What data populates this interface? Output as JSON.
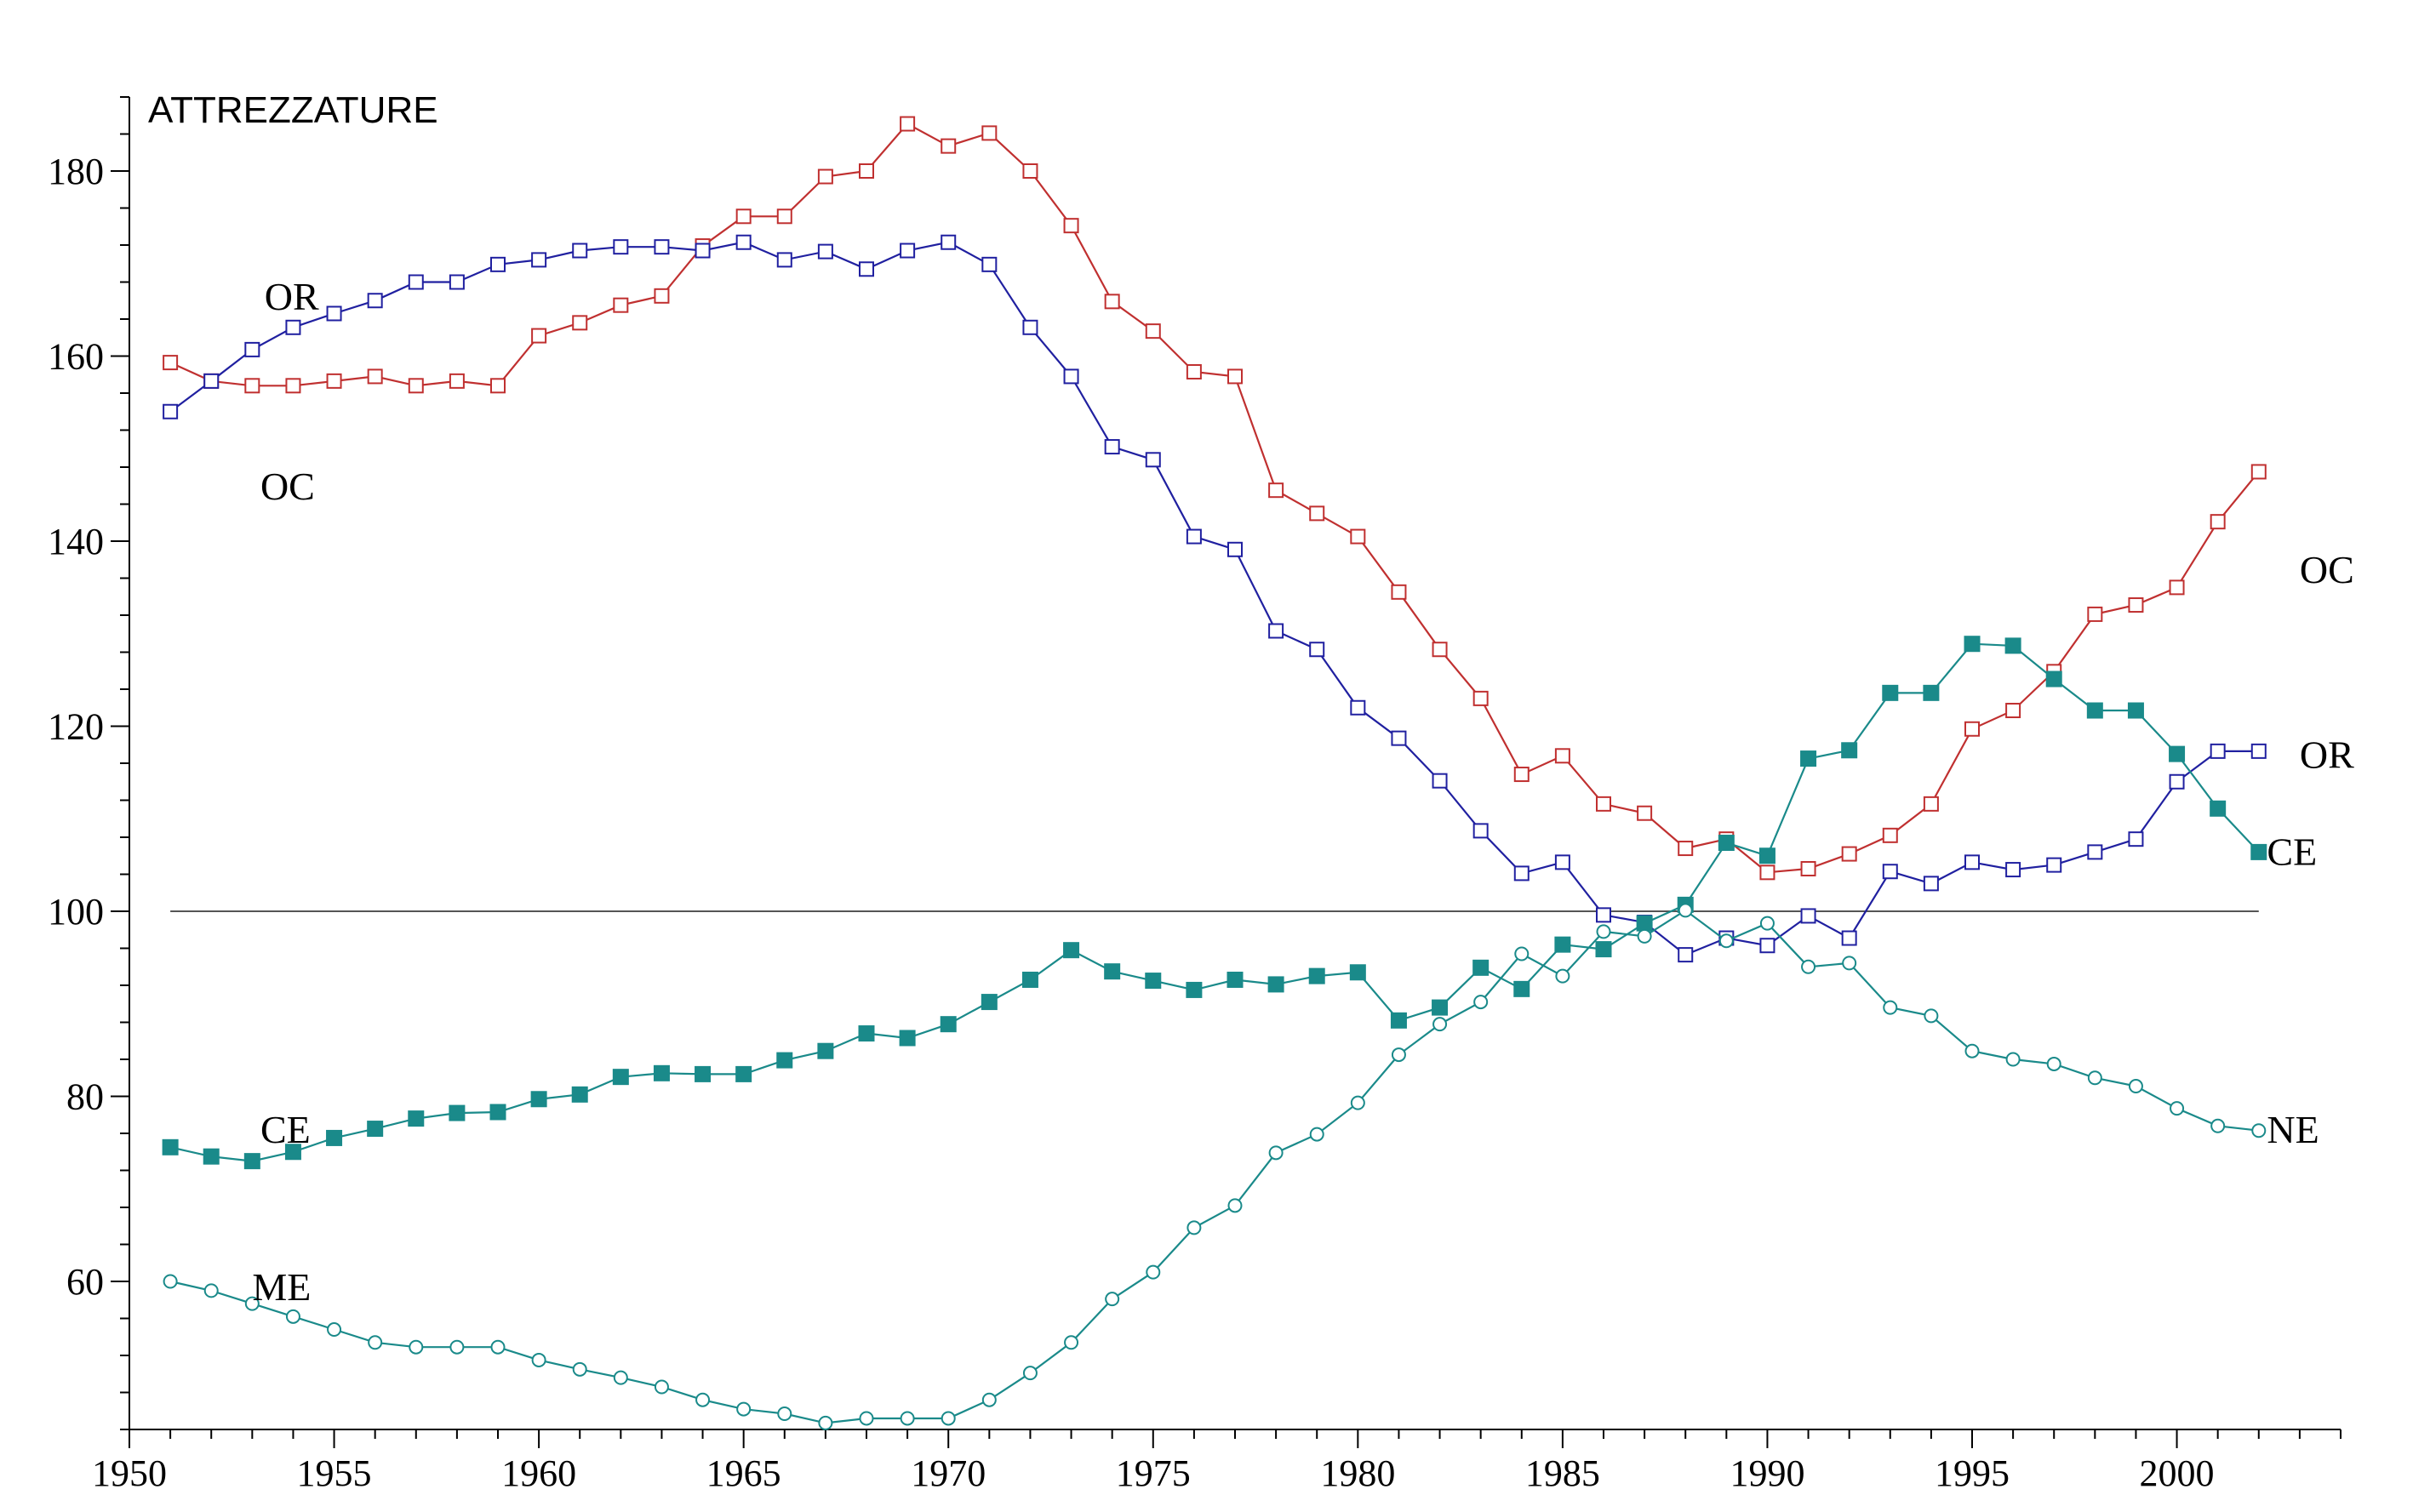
{
  "chart_data": {
    "type": "line",
    "title": "ATTREZZATURE",
    "xlabel": "",
    "ylabel": "",
    "xlim": [
      1950,
      2004
    ],
    "ylim": [
      44,
      188
    ],
    "grid": false,
    "reference_line": 100,
    "x_ticks": [
      1950,
      1955,
      1960,
      1965,
      1970,
      1975,
      1980,
      1985,
      1990,
      1995,
      2000
    ],
    "y_ticks": [
      60,
      80,
      100,
      120,
      140,
      160,
      180
    ],
    "x": [
      1951,
      1952,
      1953,
      1954,
      1955,
      1956,
      1957,
      1958,
      1959,
      1960,
      1961,
      1962,
      1963,
      1964,
      1965,
      1966,
      1967,
      1968,
      1969,
      1970,
      1971,
      1972,
      1973,
      1974,
      1975,
      1976,
      1977,
      1978,
      1979,
      1980,
      1981,
      1982,
      1983,
      1984,
      1985,
      1986,
      1987,
      1988,
      1989,
      1990,
      1991,
      1992,
      1993,
      1994,
      1995,
      1996,
      1997,
      1998,
      1999,
      2000,
      2001,
      2002
    ],
    "series": [
      {
        "id": "oc",
        "color": "#c03030",
        "marker": "open-square",
        "values": [
          159.3,
          157.3,
          156.8,
          156.8,
          157.3,
          157.8,
          156.8,
          157.3,
          156.8,
          162.2,
          163.6,
          165.5,
          166.5,
          171.9,
          175.1,
          175.1,
          179.4,
          180.0,
          185.1,
          182.7,
          184.1,
          180.0,
          174.1,
          165.9,
          162.7,
          158.3,
          157.8,
          145.5,
          143.0,
          140.5,
          134.5,
          128.3,
          123.0,
          114.8,
          116.8,
          111.6,
          110.6,
          106.8,
          107.8,
          104.2,
          104.6,
          106.2,
          108.2,
          111.6,
          119.7,
          121.7,
          125.9,
          132.1,
          133.1,
          135.0,
          142.1,
          147.5
        ]
      },
      {
        "id": "or",
        "color": "#2020a0",
        "marker": "open-square",
        "values": [
          154.0,
          157.3,
          160.7,
          163.1,
          164.6,
          166.0,
          168.0,
          168.0,
          169.9,
          170.4,
          171.4,
          171.8,
          171.8,
          171.4,
          172.3,
          170.4,
          171.3,
          169.4,
          171.4,
          172.3,
          169.9,
          163.1,
          157.8,
          150.2,
          148.8,
          140.5,
          139.1,
          130.3,
          128.3,
          122.0,
          118.7,
          114.1,
          108.7,
          104.1,
          105.3,
          99.6,
          98.8,
          95.3,
          97.1,
          96.3,
          99.5,
          97.1,
          104.3,
          103.0,
          105.3,
          104.5,
          105.0,
          106.4,
          107.8,
          114.0,
          117.3,
          117.3
        ]
      },
      {
        "id": "ce",
        "color": "#1a8a8a",
        "marker": "filled-square",
        "values": [
          74.5,
          73.5,
          73.0,
          74.0,
          75.5,
          76.5,
          77.6,
          78.2,
          78.3,
          79.7,
          80.2,
          82.1,
          82.5,
          82.4,
          82.4,
          83.9,
          84.9,
          86.8,
          86.3,
          87.8,
          90.2,
          92.6,
          95.8,
          93.5,
          92.5,
          91.5,
          92.6,
          92.1,
          93.0,
          93.4,
          88.2,
          89.6,
          93.9,
          91.6,
          96.4,
          95.9,
          98.7,
          100.7,
          107.4,
          106.0,
          116.5,
          117.4,
          123.6,
          123.6,
          128.9,
          128.7,
          125.1,
          121.7,
          121.7,
          117.0,
          111.1,
          106.4
        ]
      },
      {
        "id": "me-ne",
        "color": "#1a8a8a",
        "marker": "open-circle",
        "values": [
          60.0,
          59.0,
          57.6,
          56.2,
          54.8,
          53.4,
          52.9,
          52.9,
          52.9,
          51.5,
          50.5,
          49.6,
          48.6,
          47.2,
          46.2,
          45.7,
          44.7,
          45.2,
          45.2,
          45.2,
          47.2,
          50.1,
          53.4,
          58.1,
          61.0,
          65.8,
          68.2,
          73.9,
          75.9,
          79.3,
          84.5,
          87.8,
          90.2,
          95.4,
          93.0,
          97.8,
          97.3,
          100.1,
          96.8,
          98.7,
          94.0,
          94.4,
          89.6,
          88.7,
          84.9,
          84.0,
          83.5,
          82.0,
          81.1,
          78.7,
          76.8,
          76.3
        ]
      }
    ],
    "labels": [
      {
        "text": "OR",
        "x": 1953.3,
        "y": 165.0
      },
      {
        "text": "OC",
        "x": 1953.2,
        "y": 144.5
      },
      {
        "text": "OC",
        "x": 2003.0,
        "y": 135.5
      },
      {
        "text": "OR",
        "x": 2003.0,
        "y": 115.5
      },
      {
        "text": "CE",
        "x": 2002.2,
        "y": 105.0
      },
      {
        "text": "CE",
        "x": 1953.2,
        "y": 75.0
      },
      {
        "text": "NE",
        "x": 2002.2,
        "y": 75.0
      },
      {
        "text": "ME",
        "x": 1953.0,
        "y": 58.0
      }
    ]
  }
}
